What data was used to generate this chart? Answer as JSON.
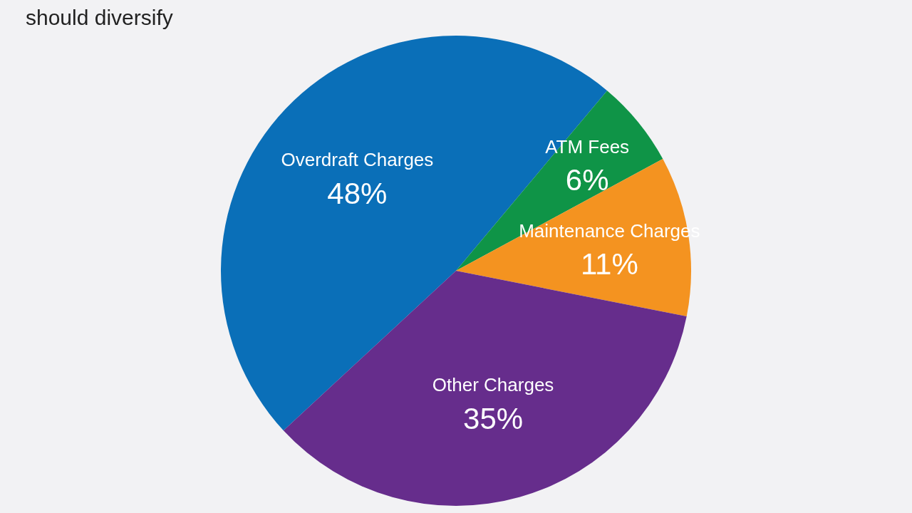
{
  "chart_data": {
    "type": "pie",
    "title": "should diversify",
    "categories": [
      "Overdraft Charges",
      "ATM Fees",
      "Maintenance Charges",
      "Other Charges"
    ],
    "values": [
      48,
      6,
      11,
      35
    ],
    "colors": [
      "#0a6fb8",
      "#0f9447",
      "#f49320",
      "#662d8c"
    ],
    "value_labels": [
      "48%",
      "6%",
      "11%",
      "35%"
    ],
    "legend": false
  }
}
